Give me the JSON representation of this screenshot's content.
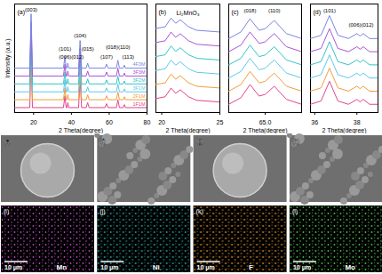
{
  "chart_data": [
    {
      "panel": "(a)",
      "type": "line",
      "x_label": "2 Theta(degree)",
      "y_label": "Intensity (a.u.)",
      "tick_labels": "x",
      "xlim": [
        10,
        80
      ],
      "xticks": [
        20,
        40,
        60,
        80
      ],
      "ylim": [
        0,
        110
      ],
      "x": [
        10,
        18,
        18.7,
        19.4,
        35.8,
        36.6,
        37.2,
        37.7,
        38.1,
        38.6,
        43.8,
        44.6,
        45.4,
        47.8,
        48.6,
        49.4,
        57.8,
        58.6,
        59.4,
        63.8,
        64.6,
        65.4,
        67.4,
        68,
        68.6,
        80
      ],
      "series": [
        {
          "name": "1F1M",
          "color": "#e0458e",
          "values": [
            5,
            5,
            60,
            5,
            5,
            17,
            5,
            5,
            10,
            5,
            5,
            33,
            5,
            5,
            10,
            5,
            5,
            9,
            5,
            5,
            13,
            5,
            5,
            8,
            5,
            5
          ]
        },
        {
          "name": "2F1M",
          "color": "#f39c3a",
          "values": [
            13,
            13,
            68,
            13,
            13,
            25,
            13,
            13,
            18,
            13,
            13,
            41,
            13,
            13,
            18,
            13,
            13,
            17,
            13,
            13,
            21,
            13,
            13,
            16,
            13,
            13
          ]
        },
        {
          "name": "3F1M",
          "color": "#5ec8ea",
          "values": [
            21,
            21,
            76,
            21,
            21,
            33,
            21,
            21,
            26,
            21,
            21,
            49,
            21,
            21,
            26,
            21,
            21,
            25,
            21,
            21,
            29,
            21,
            21,
            24,
            21,
            21
          ]
        },
        {
          "name": "3F2M",
          "color": "#34c4c4",
          "values": [
            29,
            29,
            84,
            29,
            29,
            41,
            29,
            29,
            34,
            29,
            29,
            57,
            29,
            29,
            34,
            29,
            29,
            33,
            29,
            29,
            37,
            29,
            29,
            32,
            29,
            29
          ]
        },
        {
          "name": "3F3M",
          "color": "#a855d6",
          "values": [
            37,
            37,
            92,
            37,
            37,
            49,
            37,
            37,
            42,
            37,
            37,
            65,
            37,
            37,
            42,
            37,
            37,
            41,
            37,
            37,
            45,
            37,
            37,
            40,
            37,
            37
          ]
        },
        {
          "name": "4F3M",
          "color": "#7a86e0",
          "values": [
            45,
            45,
            100,
            45,
            45,
            57,
            45,
            45,
            50,
            45,
            45,
            73,
            45,
            45,
            50,
            45,
            45,
            49,
            45,
            45,
            53,
            45,
            45,
            48,
            45,
            45
          ]
        }
      ],
      "annotations": [
        {
          "text": "(003)",
          "x": 18.7,
          "y": 104
        },
        {
          "text": "(101)",
          "x": 36.6,
          "y": 64
        },
        {
          "text": "(006)(012)",
          "x": 40,
          "y": 56
        },
        {
          "text": "(104)",
          "x": 44.6,
          "y": 78
        },
        {
          "text": "(015)",
          "x": 48.6,
          "y": 64
        },
        {
          "text": "(107)",
          "x": 58.6,
          "y": 56
        },
        {
          "text": "(018)(110)",
          "x": 64.6,
          "y": 66
        },
        {
          "text": "(113)",
          "x": 70,
          "y": 56
        }
      ]
    },
    {
      "panel": "(b)",
      "type": "line",
      "title": "Li₂MnO₃",
      "x_label": "2 Theta(degree)",
      "tick_labels": "x",
      "xlim": [
        19.5,
        25
      ],
      "xticks": [
        20,
        25
      ],
      "ylim": [
        0,
        62
      ],
      "x": [
        19.5,
        20.3,
        20.8,
        21.2,
        21.6,
        22.3,
        23,
        25
      ],
      "series": [
        {
          "color": "#e0458e",
          "values": [
            8,
            9,
            14,
            11,
            13,
            9,
            7,
            6
          ]
        },
        {
          "color": "#f39c3a",
          "values": [
            16,
            17,
            22,
            19,
            21,
            17,
            15,
            14
          ]
        },
        {
          "color": "#5ec8ea",
          "values": [
            24,
            25,
            30,
            27,
            29,
            25,
            23,
            22
          ]
        },
        {
          "color": "#34c4c4",
          "values": [
            32,
            33,
            38,
            35,
            37,
            33,
            31,
            30
          ]
        },
        {
          "color": "#a855d6",
          "values": [
            40,
            41,
            46,
            43,
            45,
            41,
            39,
            38
          ]
        },
        {
          "color": "#7a86e0",
          "values": [
            48,
            49,
            54,
            51,
            53,
            49,
            47,
            46
          ]
        }
      ]
    },
    {
      "panel": "(c)",
      "type": "line",
      "x_label": "2 Theta(degree)",
      "tick_labels": "x",
      "xlim": [
        63.8,
        66.2
      ],
      "xticks": [
        {
          "value": 65,
          "label": "65.0"
        }
      ],
      "ylim": [
        0,
        66
      ],
      "x": [
        63.8,
        64.2,
        64.5,
        64.8,
        65.0,
        65.3,
        65.7,
        66.2
      ],
      "series": [
        {
          "color": "#e0458e",
          "values": [
            5,
            9,
            17,
            10,
            11,
            16,
            8,
            5
          ]
        },
        {
          "color": "#f39c3a",
          "values": [
            13,
            17,
            25,
            18,
            19,
            24,
            16,
            13
          ]
        },
        {
          "color": "#5ec8ea",
          "values": [
            21,
            25,
            33,
            26,
            27,
            32,
            24,
            21
          ]
        },
        {
          "color": "#34c4c4",
          "values": [
            29,
            33,
            41,
            34,
            35,
            40,
            32,
            29
          ]
        },
        {
          "color": "#a855d6",
          "values": [
            37,
            41,
            49,
            42,
            43,
            48,
            40,
            37
          ]
        },
        {
          "color": "#7a86e0",
          "values": [
            45,
            49,
            57,
            50,
            51,
            56,
            48,
            45
          ]
        }
      ],
      "annotations": [
        {
          "text": "(018)",
          "x": 64.5,
          "y": 62
        },
        {
          "text": "(110)",
          "x": 65.3,
          "y": 62
        }
      ]
    },
    {
      "panel": "(d)",
      "type": "line",
      "x_label": "2 Theta(degree)",
      "tick_labels": "x",
      "xlim": [
        35.8,
        39
      ],
      "xticks": [
        36,
        38
      ],
      "ylim": [
        0,
        66
      ],
      "x": [
        35.8,
        36.3,
        36.7,
        37.1,
        37.6,
        38.0,
        38.15,
        38.3,
        38.6,
        39
      ],
      "series": [
        {
          "color": "#e0458e",
          "values": [
            5,
            7,
            19,
            7,
            5,
            8,
            6.5,
            8,
            5,
            5
          ]
        },
        {
          "color": "#f39c3a",
          "values": [
            13,
            15,
            27,
            15,
            13,
            16,
            14.5,
            16,
            13,
            13
          ]
        },
        {
          "color": "#5ec8ea",
          "values": [
            21,
            23,
            35,
            23,
            21,
            24,
            22.5,
            24,
            21,
            21
          ]
        },
        {
          "color": "#34c4c4",
          "values": [
            29,
            31,
            43,
            31,
            29,
            32,
            30.5,
            32,
            29,
            29
          ]
        },
        {
          "color": "#a855d6",
          "values": [
            37,
            39,
            51,
            39,
            37,
            40,
            38.5,
            40,
            37,
            37
          ]
        },
        {
          "color": "#7a86e0",
          "values": [
            45,
            47,
            59,
            47,
            45,
            48,
            46.5,
            48,
            45,
            45
          ]
        }
      ],
      "annotations": [
        {
          "text": "(101)",
          "x": 36.7,
          "y": 62
        },
        {
          "text": "(006)(012)",
          "x": 38.2,
          "y": 53
        }
      ]
    }
  ],
  "images": [
    {
      "panel": "(e)"
    },
    {
      "panel": "(f)"
    },
    {
      "panel": "(g)"
    },
    {
      "panel": "(h)"
    },
    {
      "panel": "(i)",
      "element": "Mn",
      "color": "#b347b8",
      "scale_bar": "10 μm"
    },
    {
      "panel": "(j)",
      "element": "Ni",
      "color": "#2aa8a8",
      "scale_bar": "10 μm"
    },
    {
      "panel": "(k)",
      "element": "F",
      "color": "#d8902a",
      "scale_bar": "10 μm"
    },
    {
      "panel": "(l)",
      "element": "Mo",
      "color": "#4cc04c",
      "scale_bar": "10 μm"
    }
  ]
}
